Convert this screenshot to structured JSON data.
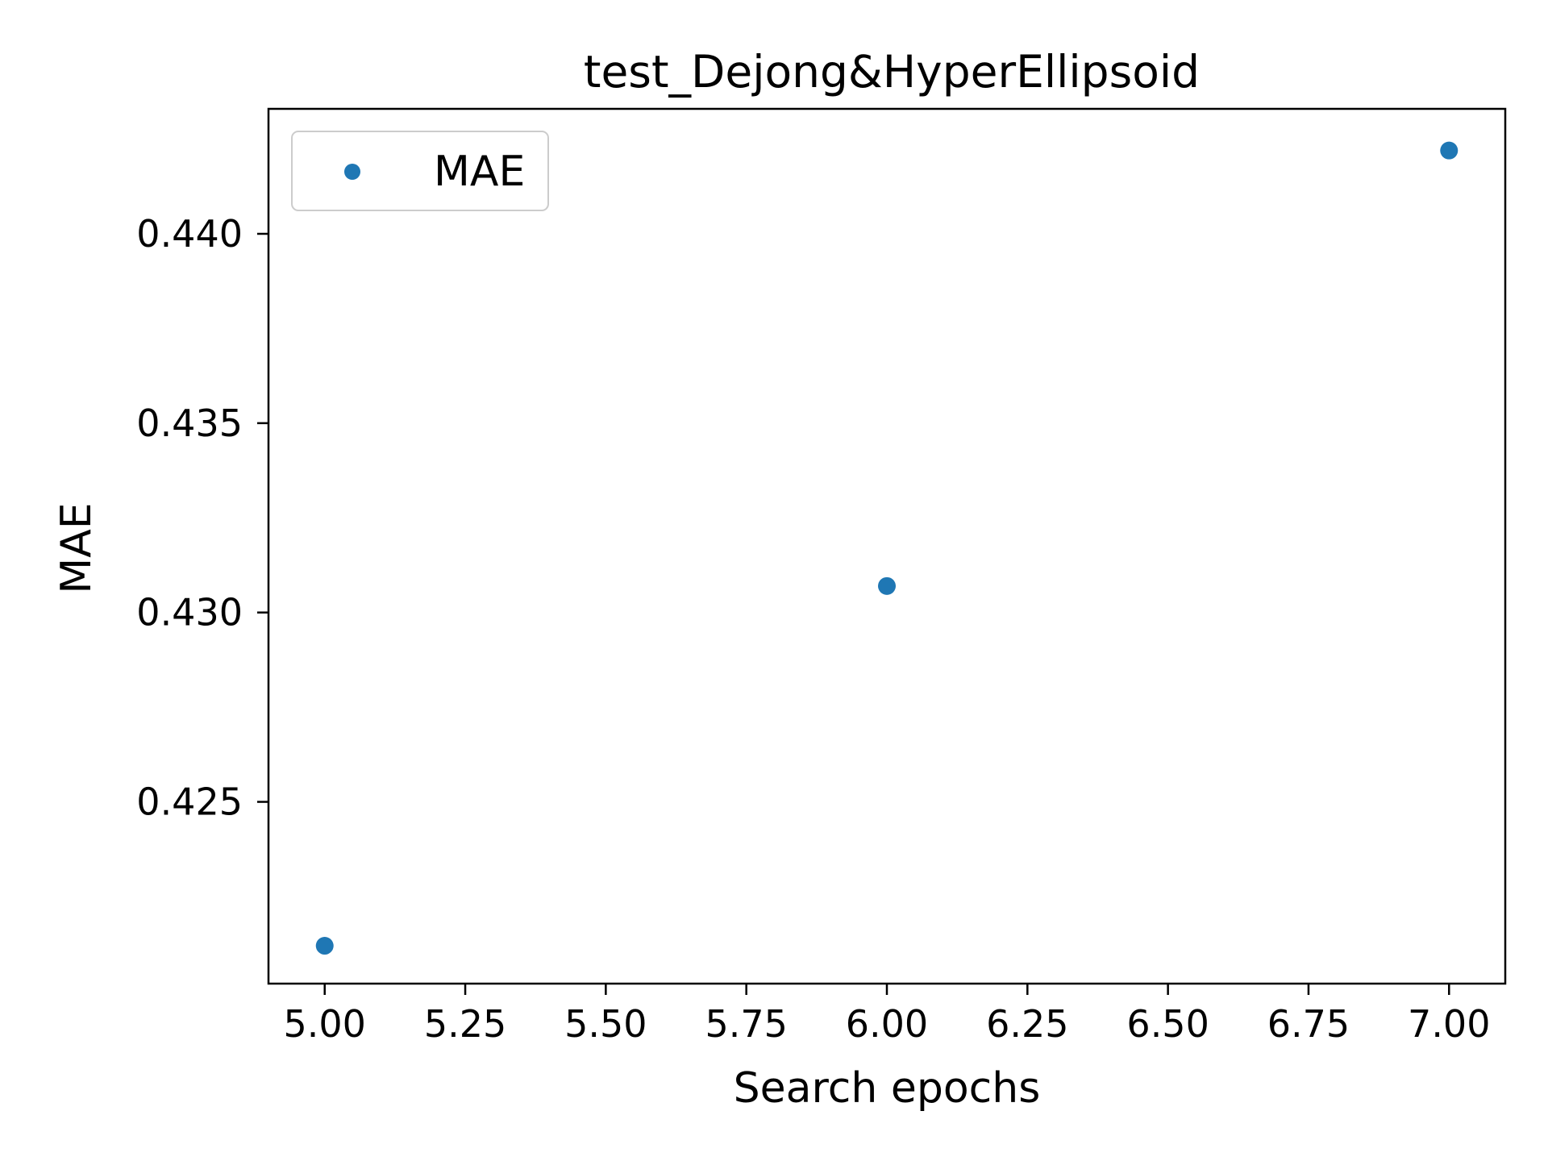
{
  "chart_data": {
    "type": "scatter",
    "title": "test_Dejong&HyperEllipsoid",
    "xlabel": "Search epochs",
    "ylabel": "MAE",
    "series": [
      {
        "name": "MAE",
        "color": "#1f77b4",
        "points": [
          {
            "x": 5.0,
            "y": 0.4212
          },
          {
            "x": 6.0,
            "y": 0.4307
          },
          {
            "x": 7.0,
            "y": 0.4422
          }
        ]
      }
    ],
    "xlim": [
      4.9,
      7.1
    ],
    "ylim": [
      0.4202,
      0.4433
    ],
    "xticks": [
      {
        "value": 5.0,
        "label": "5.00"
      },
      {
        "value": 5.25,
        "label": "5.25"
      },
      {
        "value": 5.5,
        "label": "5.50"
      },
      {
        "value": 5.75,
        "label": "5.75"
      },
      {
        "value": 6.0,
        "label": "6.00"
      },
      {
        "value": 6.25,
        "label": "6.25"
      },
      {
        "value": 6.5,
        "label": "6.50"
      },
      {
        "value": 6.75,
        "label": "6.75"
      },
      {
        "value": 7.0,
        "label": "7.00"
      }
    ],
    "yticks": [
      {
        "value": 0.425,
        "label": "0.425"
      },
      {
        "value": 0.43,
        "label": "0.430"
      },
      {
        "value": 0.435,
        "label": "0.435"
      },
      {
        "value": 0.44,
        "label": "0.440"
      }
    ],
    "grid": false,
    "legend_position": "top-left"
  }
}
